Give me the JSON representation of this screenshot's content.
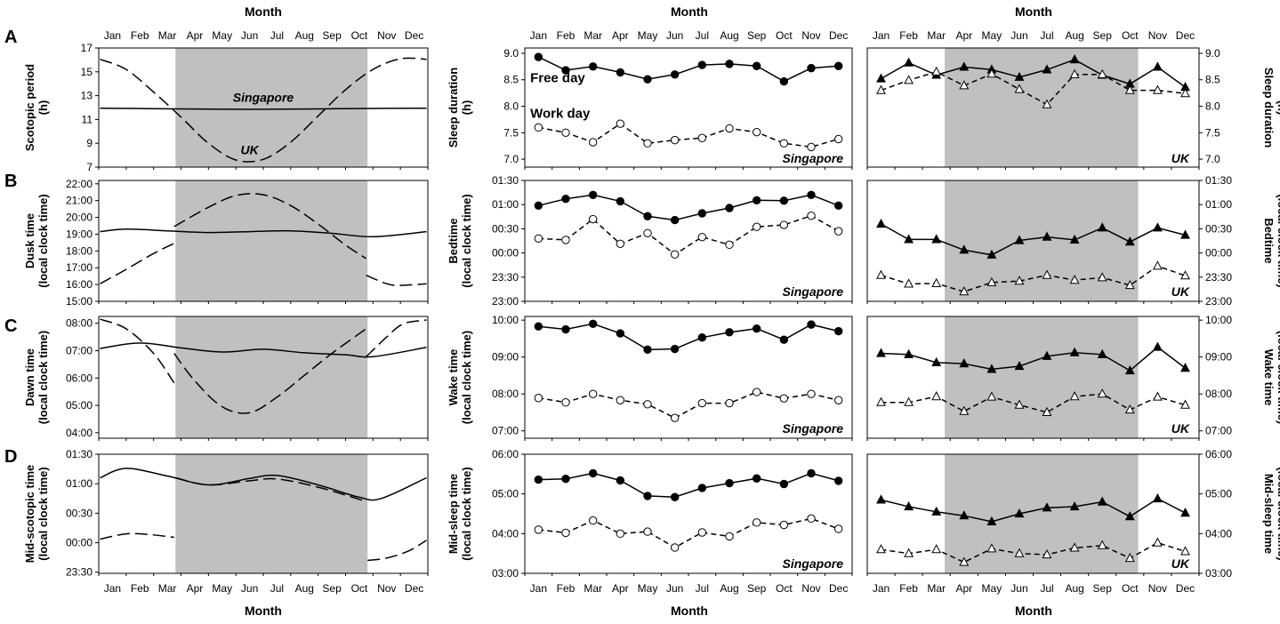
{
  "months": [
    "Jan",
    "Feb",
    "Mar",
    "Apr",
    "May",
    "Jun",
    "Jul",
    "Aug",
    "Sep",
    "Oct",
    "Nov",
    "Dec"
  ],
  "month_axis_label": "Month",
  "row_labels": [
    "A",
    "B",
    "C",
    "D"
  ],
  "chart_data": [
    {
      "id": "A-photoperiod",
      "type": "line",
      "row": "A",
      "ylabel": [
        "Scotopic period",
        "(h)"
      ],
      "yticks": [
        7,
        9,
        11,
        13,
        15,
        17
      ],
      "ytick_labels": [
        "7",
        "9",
        "11",
        "13",
        "15",
        "17"
      ],
      "ylim": [
        7,
        17
      ],
      "shaded_months": [
        3.3,
        10.3
      ],
      "series": [
        {
          "name": "Singapore",
          "style": "solid",
          "curve": true,
          "x": [
            0.55,
            2,
            4,
            6,
            8,
            10,
            12.45
          ],
          "values": [
            11.95,
            11.92,
            11.88,
            11.85,
            11.88,
            11.92,
            11.95
          ]
        },
        {
          "name": "UK",
          "style": "dashed",
          "curve": true,
          "x": [
            0.55,
            1.5,
            2.5,
            3.5,
            4.5,
            5.5,
            6.5,
            7.5,
            8.5,
            9.5,
            10.5,
            11.5,
            12.45
          ],
          "values": [
            16.05,
            15.2,
            13.3,
            11.2,
            9.0,
            7.6,
            7.65,
            9.1,
            11.3,
            13.5,
            15.2,
            16.1,
            16.05
          ]
        }
      ],
      "annotations": [
        {
          "text": "Singapore",
          "x": 6.5,
          "y": 12.5,
          "style": "bold-italic"
        },
        {
          "text": "UK",
          "x": 6.0,
          "y": 8.1,
          "style": "bold-italic"
        }
      ]
    },
    {
      "id": "A-singapore",
      "type": "line",
      "row": "A",
      "ylabel": [
        "Sleep duration",
        "(h)"
      ],
      "yticks": [
        7.0,
        7.5,
        8.0,
        8.5,
        9.0
      ],
      "ytick_labels": [
        "7.0",
        "7.5",
        "8.0",
        "8.5",
        "9.0"
      ],
      "ylim": [
        6.85,
        9.1
      ],
      "location": "Singapore",
      "series": [
        {
          "name": "Free day",
          "style": "solid",
          "marker": "circle",
          "filled": true,
          "values": [
            8.93,
            8.68,
            8.75,
            8.64,
            8.51,
            8.6,
            8.78,
            8.8,
            8.76,
            8.47,
            8.72,
            8.76
          ]
        },
        {
          "name": "Work day",
          "style": "dashed",
          "marker": "circle",
          "filled": false,
          "values": [
            7.6,
            7.5,
            7.32,
            7.67,
            7.3,
            7.36,
            7.4,
            7.58,
            7.51,
            7.3,
            7.23,
            7.38
          ]
        }
      ],
      "annotations": [
        {
          "text": "Free day",
          "x": 1.35,
          "y": 8.45,
          "style": "bold"
        },
        {
          "text": "Work day",
          "x": 1.35,
          "y": 7.78,
          "style": "bold"
        }
      ]
    },
    {
      "id": "A-uk",
      "type": "line",
      "row": "A",
      "ylabel": [
        "Sleep duration",
        "(h)"
      ],
      "yticks": [
        7.0,
        7.5,
        8.0,
        8.5,
        9.0
      ],
      "ytick_labels": [
        "7.0",
        "7.5",
        "8.0",
        "8.5",
        "9.0"
      ],
      "ylim": [
        6.85,
        9.1
      ],
      "location": "UK",
      "shaded_months": [
        3.3,
        10.3
      ],
      "series": [
        {
          "name": "Free day",
          "style": "solid",
          "marker": "triangle",
          "filled": true,
          "values": [
            8.52,
            8.82,
            8.59,
            8.74,
            8.69,
            8.55,
            8.69,
            8.88,
            8.59,
            8.42,
            8.74,
            8.36
          ]
        },
        {
          "name": "Work day",
          "style": "dashed",
          "marker": "triangle",
          "filled": false,
          "values": [
            8.3,
            8.49,
            8.65,
            8.39,
            8.61,
            8.32,
            8.03,
            8.6,
            8.6,
            8.3,
            8.3,
            8.24
          ]
        }
      ]
    },
    {
      "id": "B-photoperiod",
      "type": "line",
      "row": "B",
      "ylabel": [
        "Dusk time",
        "(local clock time)"
      ],
      "yticks": [
        15,
        16,
        17,
        18,
        19,
        20,
        21,
        22
      ],
      "ytick_labels": [
        "15:00",
        "16:00",
        "17:00",
        "18:00",
        "19:00",
        "20:00",
        "21:00",
        "22:00"
      ],
      "ylim": [
        15,
        22.2
      ],
      "shaded_months": [
        3.3,
        10.3
      ],
      "series": [
        {
          "name": "Singapore",
          "style": "solid",
          "curve": true,
          "x": [
            0.55,
            1.5,
            3,
            4.5,
            6,
            7.5,
            9,
            10.5,
            12.45
          ],
          "values": [
            19.15,
            19.3,
            19.2,
            19.1,
            19.15,
            19.2,
            19.05,
            18.85,
            19.15
          ]
        },
        {
          "name": "UK",
          "style": "dashed",
          "curve": true,
          "x": [
            0.55,
            1.5,
            2.5,
            3.25
          ],
          "values": [
            16.05,
            16.9,
            17.85,
            18.45
          ]
        },
        {
          "name": "UK",
          "style": "dashed",
          "curve": true,
          "x": [
            3.25,
            4.5,
            5.5,
            6.5,
            7.5,
            8.5,
            9.5,
            10.25
          ],
          "values": [
            19.45,
            20.6,
            21.3,
            21.35,
            20.7,
            19.6,
            18.35,
            17.55
          ]
        },
        {
          "name": "UK",
          "style": "dashed",
          "curve": true,
          "x": [
            10.25,
            11,
            11.5,
            12.45
          ],
          "values": [
            16.55,
            16.05,
            15.95,
            16.05
          ]
        }
      ]
    },
    {
      "id": "B-singapore",
      "type": "line",
      "row": "B",
      "ylabel": [
        "Bedtime",
        "(local clock time)"
      ],
      "yticks": [
        23,
        23.5,
        24,
        24.5,
        25,
        25.5
      ],
      "ytick_labels": [
        "23:00",
        "23:30",
        "00:00",
        "00:30",
        "01:00",
        "01:30"
      ],
      "ylim": [
        23,
        25.5
      ],
      "location": "Singapore",
      "series": [
        {
          "name": "Free day",
          "style": "solid",
          "marker": "circle",
          "filled": true,
          "values": [
            24.98,
            25.12,
            25.2,
            25.07,
            24.76,
            24.68,
            24.82,
            24.93,
            25.09,
            25.08,
            25.2,
            24.98
          ]
        },
        {
          "name": "Work day",
          "style": "dashed",
          "marker": "circle",
          "filled": false,
          "values": [
            24.3,
            24.27,
            24.7,
            24.19,
            24.41,
            23.97,
            24.33,
            24.17,
            24.54,
            24.58,
            24.77,
            24.45
          ]
        }
      ]
    },
    {
      "id": "B-uk",
      "type": "line",
      "row": "B",
      "ylabel": [
        "Bedtime",
        "(local clock time)"
      ],
      "yticks": [
        23,
        23.5,
        24,
        24.5,
        25,
        25.5
      ],
      "ytick_labels": [
        "23:00",
        "23:30",
        "00:00",
        "00:30",
        "01:00",
        "01:30"
      ],
      "ylim": [
        23,
        25.5
      ],
      "location": "UK",
      "shaded_months": [
        3.3,
        10.3
      ],
      "series": [
        {
          "name": "Free day",
          "style": "solid",
          "marker": "triangle",
          "filled": true,
          "values": [
            24.6,
            24.28,
            24.28,
            24.06,
            23.96,
            24.26,
            24.33,
            24.27,
            24.52,
            24.23,
            24.52,
            24.37
          ]
        },
        {
          "name": "Work day",
          "style": "dashed",
          "marker": "triangle",
          "filled": false,
          "values": [
            23.54,
            23.36,
            23.37,
            23.2,
            23.39,
            23.42,
            23.54,
            23.44,
            23.49,
            23.33,
            23.73,
            23.53
          ]
        }
      ]
    },
    {
      "id": "C-photoperiod",
      "type": "line",
      "row": "C",
      "ylabel": [
        "Dawn time",
        "(local clock time)"
      ],
      "yticks": [
        4,
        5,
        6,
        7,
        8
      ],
      "ytick_labels": [
        "04:00",
        "05:00",
        "06:00",
        "07:00",
        "08:00"
      ],
      "ylim": [
        3.8,
        8.25
      ],
      "shaded_months": [
        3.3,
        10.3
      ],
      "series": [
        {
          "name": "Singapore",
          "style": "solid",
          "curve": true,
          "x": [
            0.55,
            2,
            3.5,
            5,
            6.5,
            8,
            9.5,
            10.5,
            12.45
          ],
          "values": [
            7.08,
            7.28,
            7.1,
            6.95,
            7.05,
            6.92,
            6.85,
            6.78,
            7.12
          ]
        },
        {
          "name": "UK",
          "style": "dashed",
          "curve": true,
          "x": [
            0.55,
            1.5,
            2.5,
            3.25
          ],
          "values": [
            8.15,
            7.8,
            6.9,
            5.82
          ]
        },
        {
          "name": "UK",
          "style": "dashed",
          "curve": true,
          "x": [
            3.25,
            4,
            5,
            6,
            7,
            8,
            9,
            10.25
          ],
          "values": [
            6.9,
            5.9,
            4.95,
            4.73,
            5.3,
            6.1,
            6.9,
            7.8
          ]
        },
        {
          "name": "UK",
          "style": "dashed",
          "curve": true,
          "x": [
            10.25,
            11,
            11.6,
            12.45
          ],
          "values": [
            6.78,
            7.5,
            7.98,
            8.12
          ]
        }
      ]
    },
    {
      "id": "C-singapore",
      "type": "line",
      "row": "C",
      "ylabel": [
        "Wake time",
        "(local clock time)"
      ],
      "yticks": [
        7,
        8,
        9,
        10
      ],
      "ytick_labels": [
        "07:00",
        "08:00",
        "09:00",
        "10:00"
      ],
      "ylim": [
        6.8,
        10.1
      ],
      "location": "Singapore",
      "series": [
        {
          "name": "Free day",
          "style": "solid",
          "marker": "circle",
          "filled": true,
          "values": [
            9.83,
            9.75,
            9.9,
            9.64,
            9.2,
            9.22,
            9.53,
            9.67,
            9.77,
            9.47,
            9.88,
            9.7
          ]
        },
        {
          "name": "Work day",
          "style": "dashed",
          "marker": "circle",
          "filled": false,
          "values": [
            7.89,
            7.77,
            8.0,
            7.83,
            7.72,
            7.35,
            7.75,
            7.75,
            8.05,
            7.88,
            8.0,
            7.83
          ]
        }
      ]
    },
    {
      "id": "C-uk",
      "type": "line",
      "row": "C",
      "ylabel": [
        "Wake time",
        "(local clock time)"
      ],
      "yticks": [
        7,
        8,
        9,
        10
      ],
      "ytick_labels": [
        "07:00",
        "08:00",
        "09:00",
        "10:00"
      ],
      "ylim": [
        6.8,
        10.1
      ],
      "location": "UK",
      "shaded_months": [
        3.3,
        10.3
      ],
      "series": [
        {
          "name": "Free day",
          "style": "solid",
          "marker": "triangle",
          "filled": true,
          "values": [
            9.1,
            9.07,
            8.85,
            8.82,
            8.67,
            8.75,
            9.02,
            9.12,
            9.07,
            8.63,
            9.27,
            8.7
          ]
        },
        {
          "name": "Work day",
          "style": "dashed",
          "marker": "triangle",
          "filled": false,
          "values": [
            7.77,
            7.77,
            7.93,
            7.53,
            7.92,
            7.7,
            7.5,
            7.93,
            8.0,
            7.57,
            7.92,
            7.7
          ]
        }
      ]
    },
    {
      "id": "D-photoperiod",
      "type": "line",
      "row": "D",
      "ylabel": [
        "Mid-scotopic time",
        "(local clock time)"
      ],
      "yticks": [
        23.5,
        24,
        24.5,
        25,
        25.5
      ],
      "ytick_labels": [
        "23:30",
        "00:00",
        "00:30",
        "01:00",
        "01:30"
      ],
      "ylim": [
        23.48,
        25.5
      ],
      "shaded_months": [
        3.3,
        10.3
      ],
      "series": [
        {
          "name": "Singapore",
          "style": "solid",
          "curve": true,
          "x": [
            0.55,
            1.5,
            3,
            4.5,
            6,
            7,
            8.5,
            10,
            10.8,
            12.45
          ],
          "values": [
            25.1,
            25.26,
            25.13,
            24.98,
            25.09,
            25.14,
            24.98,
            24.77,
            24.75,
            25.1
          ]
        },
        {
          "name": "UK",
          "style": "dashed",
          "curve": true,
          "x": [
            0.55,
            1.5,
            2.3,
            3.25
          ],
          "values": [
            24.06,
            24.15,
            24.14,
            24.09
          ]
        },
        {
          "name": "UK",
          "style": "dashed",
          "curve": true,
          "x": [
            3.3,
            4.5,
            6,
            7,
            8.5,
            10.25
          ],
          "values": [
            25.1,
            24.98,
            25.05,
            25.08,
            24.94,
            24.7
          ]
        },
        {
          "name": "UK",
          "style": "dashed",
          "curve": true,
          "x": [
            10.3,
            11,
            11.8,
            12.45
          ],
          "values": [
            23.7,
            23.74,
            23.86,
            24.04
          ]
        }
      ]
    },
    {
      "id": "D-singapore",
      "type": "line",
      "row": "D",
      "ylabel": [
        "Mid-sleep time",
        "(local clock time)"
      ],
      "yticks": [
        3,
        4,
        5,
        6
      ],
      "ytick_labels": [
        "03:00",
        "04:00",
        "05:00",
        "06:00"
      ],
      "ylim": [
        3,
        6
      ],
      "location": "Singapore",
      "series": [
        {
          "name": "Free day",
          "style": "solid",
          "marker": "circle",
          "filled": true,
          "values": [
            5.36,
            5.38,
            5.52,
            5.34,
            4.95,
            4.92,
            5.15,
            5.27,
            5.39,
            5.25,
            5.52,
            5.33
          ]
        },
        {
          "name": "Work day",
          "style": "dashed",
          "marker": "circle",
          "filled": false,
          "values": [
            4.1,
            4.02,
            4.33,
            4.0,
            4.05,
            3.65,
            4.03,
            3.93,
            4.28,
            4.22,
            4.38,
            4.12
          ]
        }
      ]
    },
    {
      "id": "D-uk",
      "type": "line",
      "row": "D",
      "ylabel": [
        "Mid-sleep time",
        "(local clock time)"
      ],
      "yticks": [
        3,
        4,
        5,
        6
      ],
      "ytick_labels": [
        "03:00",
        "04:00",
        "05:00",
        "06:00"
      ],
      "ylim": [
        3,
        6
      ],
      "location": "UK",
      "shaded_months": [
        3.3,
        10.3
      ],
      "series": [
        {
          "name": "Free day",
          "style": "solid",
          "marker": "triangle",
          "filled": true,
          "values": [
            4.85,
            4.68,
            4.55,
            4.45,
            4.3,
            4.5,
            4.65,
            4.68,
            4.8,
            4.43,
            4.88,
            4.52
          ]
        },
        {
          "name": "Work day",
          "style": "dashed",
          "marker": "triangle",
          "filled": false,
          "values": [
            3.6,
            3.5,
            3.6,
            3.28,
            3.62,
            3.5,
            3.47,
            3.64,
            3.7,
            3.38,
            3.77,
            3.55
          ]
        }
      ]
    }
  ]
}
